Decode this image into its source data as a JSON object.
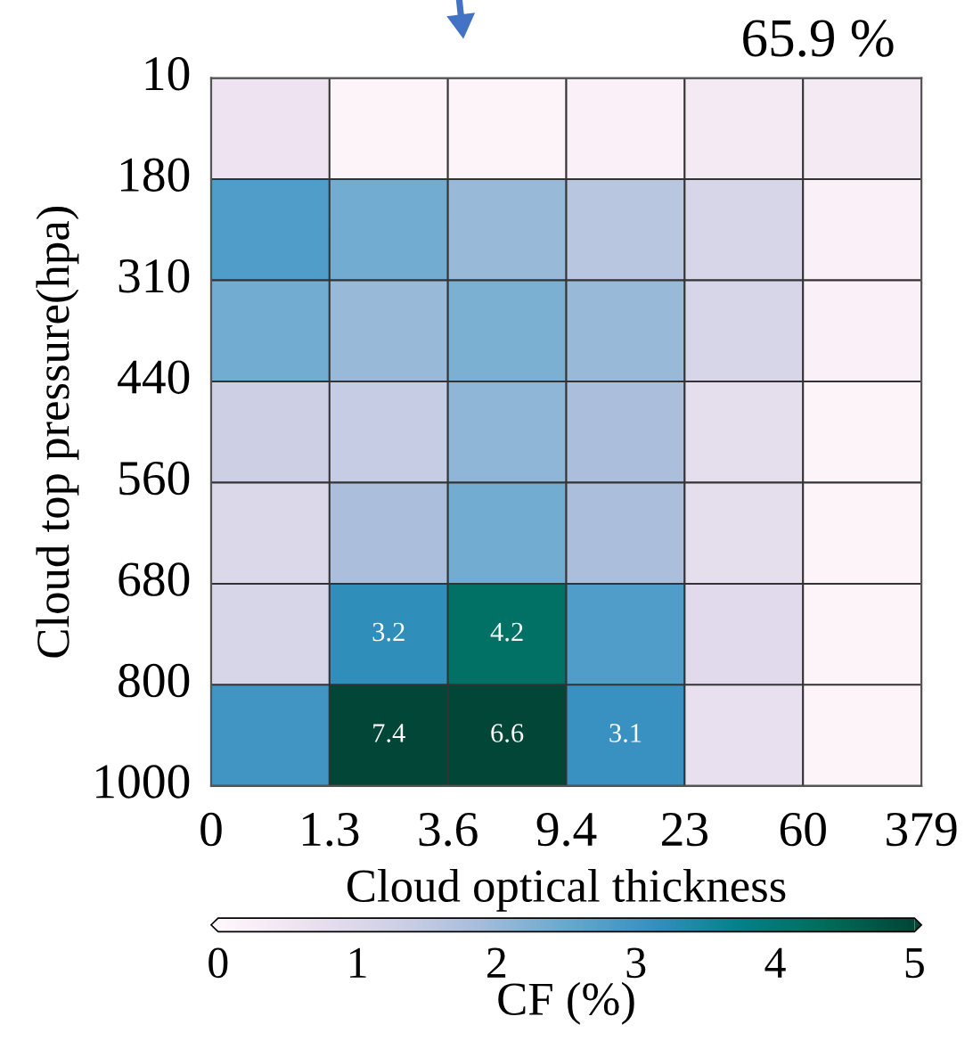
{
  "chart_data": {
    "type": "heatmap",
    "xlabel": "Cloud optical thickness",
    "ylabel": "Cloud top pressure(hpa)",
    "clabel": "CF (%)",
    "categories": [
      null,
      null,
      null,
      null,
      null,
      null
    ],
    "y_categories": [
      null,
      null,
      null,
      null,
      null,
      null,
      null
    ],
    "cells": [
      [
        0.6,
        0.1,
        0.1,
        0.2,
        0.4,
        0.4
      ],
      [
        2.8,
        2.4,
        2.0,
        1.6,
        1.1,
        0.2
      ],
      [
        2.4,
        2.0,
        2.3,
        2.0,
        1.1,
        0.2
      ],
      [
        1.3,
        1.4,
        2.1,
        1.8,
        0.8,
        0.1
      ],
      [
        1.0,
        1.8,
        2.4,
        1.8,
        0.8,
        0.1
      ],
      [
        1.1,
        3.2,
        4.2,
        2.8,
        0.9,
        0.1
      ],
      [
        3.0,
        7.4,
        6.6,
        3.1,
        0.7,
        0.1
      ]
    ],
    "cell_labels": [
      [
        null,
        null,
        null,
        null,
        null,
        null
      ],
      [
        null,
        null,
        null,
        null,
        null,
        null
      ],
      [
        null,
        null,
        null,
        null,
        null,
        null
      ],
      [
        null,
        null,
        null,
        null,
        null,
        null
      ],
      [
        null,
        null,
        null,
        null,
        null,
        null
      ],
      [
        null,
        "3.2",
        "4.2",
        null,
        null,
        null
      ],
      [
        null,
        "7.4",
        "6.6",
        "3.1",
        null,
        null
      ]
    ],
    "clim": [
      0,
      5
    ],
    "cticks": [
      0,
      1,
      2,
      3,
      4,
      5
    ],
    "annotations": [
      "65.9 %",
      "0",
      "1.3",
      "3.6",
      "9.4",
      "23",
      "60",
      "379",
      "10",
      "180",
      "310",
      "440",
      "560",
      "680",
      "800",
      "1000"
    ]
  }
}
